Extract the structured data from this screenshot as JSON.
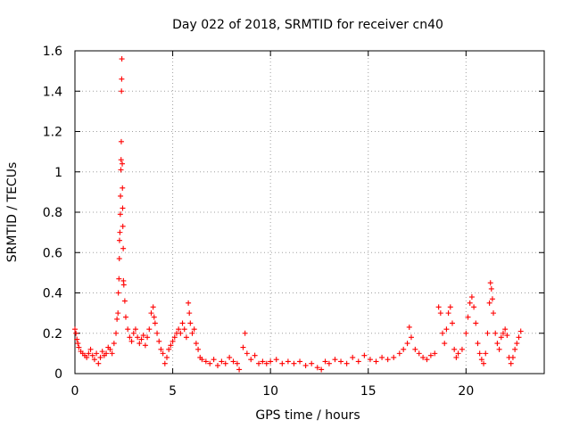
{
  "chart_data": {
    "type": "scatter",
    "title": "Day 022 of 2018, SRMTID for receiver cn40",
    "xlabel": "GPS time / hours",
    "ylabel": "SRMTID / TECUs",
    "xlim": [
      0,
      24
    ],
    "ylim": [
      0,
      1.6
    ],
    "xticks": [
      0,
      5,
      10,
      15,
      20
    ],
    "yticks": [
      0,
      0.2,
      0.4,
      0.6,
      0.8,
      1,
      1.2,
      1.4,
      1.6
    ],
    "grid": true,
    "marker": "+",
    "color": "#ff0000",
    "series": [
      {
        "name": "SRMTID",
        "points": [
          [
            0.0,
            0.22
          ],
          [
            0.05,
            0.2
          ],
          [
            0.1,
            0.17
          ],
          [
            0.15,
            0.15
          ],
          [
            0.2,
            0.13
          ],
          [
            0.3,
            0.11
          ],
          [
            0.4,
            0.1
          ],
          [
            0.5,
            0.09
          ],
          [
            0.6,
            0.08
          ],
          [
            0.7,
            0.1
          ],
          [
            0.8,
            0.12
          ],
          [
            0.9,
            0.09
          ],
          [
            1.0,
            0.07
          ],
          [
            1.1,
            0.1
          ],
          [
            1.2,
            0.05
          ],
          [
            1.3,
            0.08
          ],
          [
            1.4,
            0.11
          ],
          [
            1.5,
            0.09
          ],
          [
            1.6,
            0.1
          ],
          [
            1.7,
            0.13
          ],
          [
            1.8,
            0.12
          ],
          [
            1.9,
            0.1
          ],
          [
            2.0,
            0.15
          ],
          [
            2.1,
            0.2
          ],
          [
            2.15,
            0.27
          ],
          [
            2.2,
            0.3
          ],
          [
            2.22,
            0.4
          ],
          [
            2.25,
            0.47
          ],
          [
            2.27,
            0.57
          ],
          [
            2.28,
            0.66
          ],
          [
            2.3,
            0.7
          ],
          [
            2.32,
            0.79
          ],
          [
            2.33,
            0.88
          ],
          [
            2.35,
            1.01
          ],
          [
            2.36,
            1.06
          ],
          [
            2.37,
            1.15
          ],
          [
            2.38,
            1.4
          ],
          [
            2.39,
            1.46
          ],
          [
            2.4,
            1.56
          ],
          [
            2.42,
            1.04
          ],
          [
            2.43,
            0.92
          ],
          [
            2.44,
            0.82
          ],
          [
            2.45,
            0.73
          ],
          [
            2.47,
            0.62
          ],
          [
            2.48,
            0.46
          ],
          [
            2.5,
            0.44
          ],
          [
            2.55,
            0.36
          ],
          [
            2.6,
            0.28
          ],
          [
            2.7,
            0.22
          ],
          [
            2.8,
            0.18
          ],
          [
            2.9,
            0.16
          ],
          [
            3.0,
            0.2
          ],
          [
            3.1,
            0.22
          ],
          [
            3.2,
            0.18
          ],
          [
            3.3,
            0.15
          ],
          [
            3.4,
            0.17
          ],
          [
            3.5,
            0.19
          ],
          [
            3.6,
            0.14
          ],
          [
            3.7,
            0.18
          ],
          [
            3.8,
            0.22
          ],
          [
            3.9,
            0.3
          ],
          [
            4.0,
            0.33
          ],
          [
            4.05,
            0.28
          ],
          [
            4.1,
            0.25
          ],
          [
            4.2,
            0.2
          ],
          [
            4.3,
            0.16
          ],
          [
            4.4,
            0.12
          ],
          [
            4.5,
            0.1
          ],
          [
            4.6,
            0.05
          ],
          [
            4.7,
            0.08
          ],
          [
            4.8,
            0.12
          ],
          [
            4.9,
            0.14
          ],
          [
            5.0,
            0.16
          ],
          [
            5.1,
            0.18
          ],
          [
            5.2,
            0.2
          ],
          [
            5.3,
            0.22
          ],
          [
            5.4,
            0.2
          ],
          [
            5.5,
            0.25
          ],
          [
            5.6,
            0.22
          ],
          [
            5.7,
            0.18
          ],
          [
            5.8,
            0.35
          ],
          [
            5.85,
            0.3
          ],
          [
            5.9,
            0.25
          ],
          [
            6.0,
            0.2
          ],
          [
            6.1,
            0.22
          ],
          [
            6.2,
            0.15
          ],
          [
            6.3,
            0.12
          ],
          [
            6.4,
            0.08
          ],
          [
            6.5,
            0.07
          ],
          [
            6.7,
            0.06
          ],
          [
            6.9,
            0.05
          ],
          [
            7.1,
            0.07
          ],
          [
            7.3,
            0.04
          ],
          [
            7.5,
            0.06
          ],
          [
            7.7,
            0.05
          ],
          [
            7.9,
            0.08
          ],
          [
            8.1,
            0.06
          ],
          [
            8.3,
            0.05
          ],
          [
            8.4,
            0.02
          ],
          [
            8.6,
            0.13
          ],
          [
            8.7,
            0.2
          ],
          [
            8.8,
            0.1
          ],
          [
            9.0,
            0.07
          ],
          [
            9.2,
            0.09
          ],
          [
            9.4,
            0.05
          ],
          [
            9.6,
            0.06
          ],
          [
            9.8,
            0.05
          ],
          [
            10.0,
            0.06
          ],
          [
            10.3,
            0.07
          ],
          [
            10.6,
            0.05
          ],
          [
            10.9,
            0.06
          ],
          [
            11.2,
            0.05
          ],
          [
            11.5,
            0.06
          ],
          [
            11.8,
            0.04
          ],
          [
            12.1,
            0.05
          ],
          [
            12.4,
            0.03
          ],
          [
            12.6,
            0.02
          ],
          [
            12.8,
            0.06
          ],
          [
            13.0,
            0.05
          ],
          [
            13.3,
            0.07
          ],
          [
            13.6,
            0.06
          ],
          [
            13.9,
            0.05
          ],
          [
            14.2,
            0.08
          ],
          [
            14.5,
            0.06
          ],
          [
            14.8,
            0.09
          ],
          [
            15.1,
            0.07
          ],
          [
            15.4,
            0.06
          ],
          [
            15.7,
            0.08
          ],
          [
            16.0,
            0.07
          ],
          [
            16.3,
            0.08
          ],
          [
            16.6,
            0.1
          ],
          [
            16.8,
            0.12
          ],
          [
            17.0,
            0.15
          ],
          [
            17.1,
            0.23
          ],
          [
            17.2,
            0.18
          ],
          [
            17.4,
            0.12
          ],
          [
            17.6,
            0.1
          ],
          [
            17.8,
            0.08
          ],
          [
            18.0,
            0.07
          ],
          [
            18.2,
            0.09
          ],
          [
            18.4,
            0.1
          ],
          [
            18.6,
            0.33
          ],
          [
            18.7,
            0.3
          ],
          [
            18.8,
            0.2
          ],
          [
            18.9,
            0.15
          ],
          [
            19.0,
            0.22
          ],
          [
            19.1,
            0.3
          ],
          [
            19.2,
            0.33
          ],
          [
            19.3,
            0.25
          ],
          [
            19.4,
            0.12
          ],
          [
            19.5,
            0.08
          ],
          [
            19.6,
            0.1
          ],
          [
            19.8,
            0.12
          ],
          [
            20.0,
            0.2
          ],
          [
            20.1,
            0.28
          ],
          [
            20.2,
            0.35
          ],
          [
            20.3,
            0.38
          ],
          [
            20.4,
            0.33
          ],
          [
            20.5,
            0.25
          ],
          [
            20.6,
            0.15
          ],
          [
            20.7,
            0.1
          ],
          [
            20.8,
            0.07
          ],
          [
            20.9,
            0.05
          ],
          [
            21.0,
            0.1
          ],
          [
            21.1,
            0.2
          ],
          [
            21.2,
            0.35
          ],
          [
            21.25,
            0.45
          ],
          [
            21.3,
            0.42
          ],
          [
            21.35,
            0.37
          ],
          [
            21.4,
            0.3
          ],
          [
            21.5,
            0.2
          ],
          [
            21.6,
            0.15
          ],
          [
            21.7,
            0.12
          ],
          [
            21.8,
            0.18
          ],
          [
            21.9,
            0.2
          ],
          [
            22.0,
            0.22
          ],
          [
            22.1,
            0.19
          ],
          [
            22.2,
            0.08
          ],
          [
            22.3,
            0.05
          ],
          [
            22.4,
            0.08
          ],
          [
            22.5,
            0.12
          ],
          [
            22.6,
            0.15
          ],
          [
            22.7,
            0.18
          ],
          [
            22.8,
            0.21
          ]
        ]
      }
    ]
  }
}
